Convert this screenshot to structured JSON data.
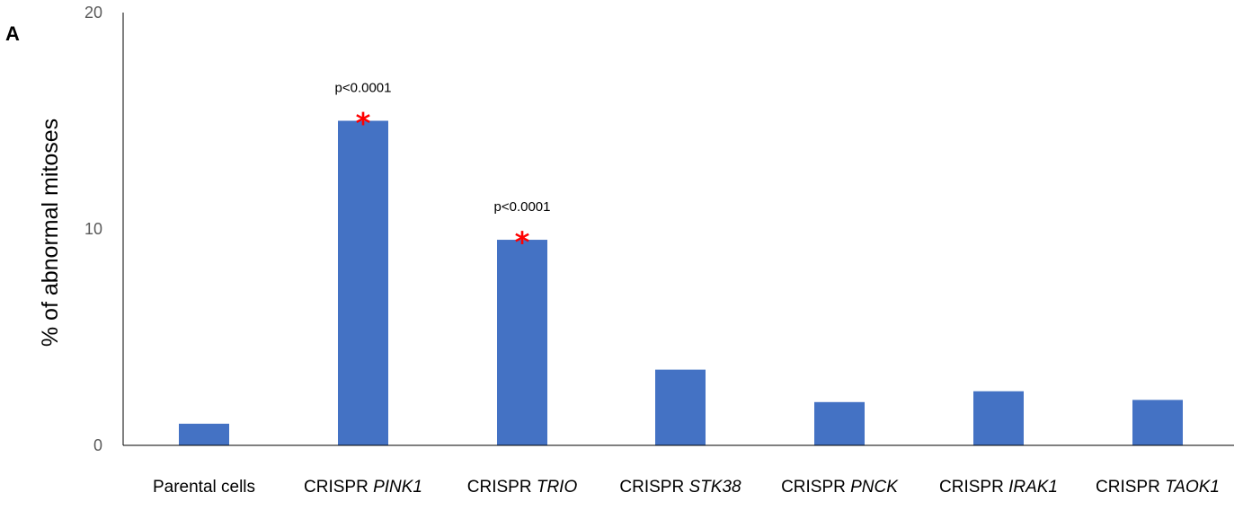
{
  "panel_label": "A",
  "chart_data": {
    "type": "bar",
    "ylabel": "% of abnormal mitoses",
    "ylim": [
      0,
      20
    ],
    "yticks": [
      0,
      10,
      20
    ],
    "bar_color": "#4472C4",
    "categories": [
      {
        "prefix": "Parental cells",
        "gene": ""
      },
      {
        "prefix": "CRISPR",
        "gene": "PINK1"
      },
      {
        "prefix": "CRISPR",
        "gene": "TRIO"
      },
      {
        "prefix": "CRISPR",
        "gene": "STK38"
      },
      {
        "prefix": "CRISPR",
        "gene": "PNCK"
      },
      {
        "prefix": "CRISPR",
        "gene": "IRAK1"
      },
      {
        "prefix": "CRISPR",
        "gene": "TAOK1"
      }
    ],
    "values": [
      1.0,
      15.0,
      9.5,
      3.5,
      2.0,
      2.5,
      2.1
    ],
    "annotations": [
      {
        "bar_index": 1,
        "text": "p<0.0001",
        "marker": "*",
        "marker_color": "#FF0000"
      },
      {
        "bar_index": 2,
        "text": "p<0.0001",
        "marker": "*",
        "marker_color": "#FF0000"
      }
    ],
    "grid": false,
    "legend": "none"
  }
}
